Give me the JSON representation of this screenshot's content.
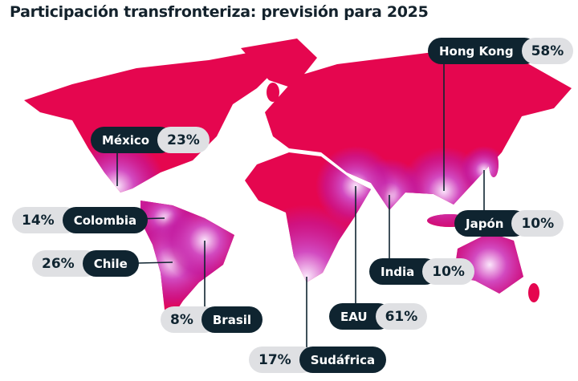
{
  "title": "Participación transfronteriza: previsión para 2025",
  "colors": {
    "land": "#e5064f",
    "hotspot": "#c21aa0",
    "label_dark": "#0f2430",
    "label_light": "#dfe0e3"
  },
  "labels": [
    {
      "name": "Hong Kong",
      "pct": "58%"
    },
    {
      "name": "México",
      "pct": "23%"
    },
    {
      "name": "Colombia",
      "pct": "14%"
    },
    {
      "name": "Chile",
      "pct": "26%"
    },
    {
      "name": "Japón",
      "pct": "10%"
    },
    {
      "name": "India",
      "pct": "10%"
    },
    {
      "name": "Brasil",
      "pct": "8%"
    },
    {
      "name": "EAU",
      "pct": "61%"
    },
    {
      "name": "Sudáfrica",
      "pct": "17%"
    }
  ]
}
